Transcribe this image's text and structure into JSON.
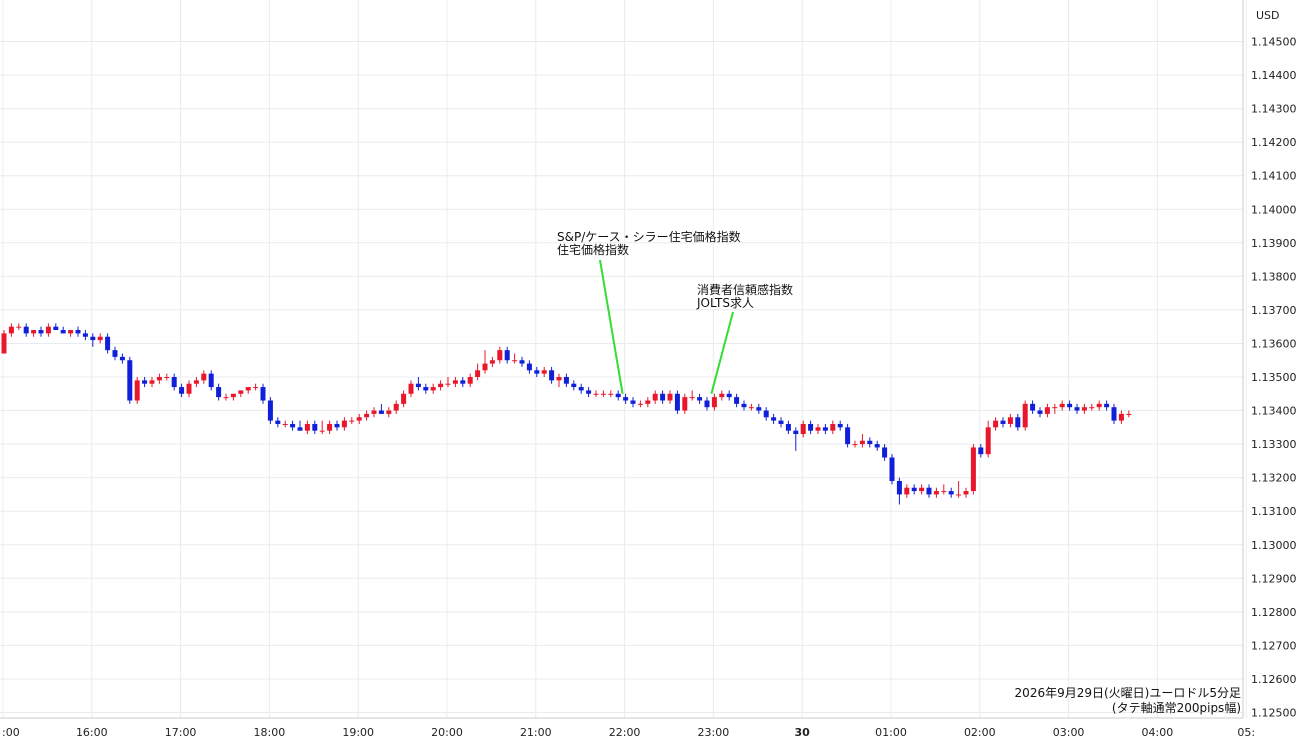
{
  "chart_data": {
    "type": "candlestick",
    "currency": "USD",
    "timeframe_minutes": 5,
    "footnote": [
      "2026年9月29日(火曜日)ユーロドル5分足",
      "(タテ軸通常200pips幅)"
    ],
    "colors": {
      "up": "#e8172b",
      "down": "#1020d8",
      "grid": "#e8ecf0",
      "annotation_line": "#33dd33"
    },
    "grid": true,
    "ylim": [
      1.1245,
      1.1455
    ],
    "y_ticks": [
      "1.14500",
      "1.14400",
      "1.14300",
      "1.14200",
      "1.14100",
      "1.14000",
      "1.13900",
      "1.13800",
      "1.13700",
      "1.13600",
      "1.13500",
      "1.13400",
      "1.13300",
      "1.13200",
      "1.13100",
      "1.13000",
      "1.12900",
      "1.12800",
      "1.12700",
      "1.12600",
      "1.12500"
    ],
    "x_ticks": [
      {
        "label": ":00",
        "hour": 15.0,
        "bold": false
      },
      {
        "label": "16:00",
        "hour": 16.0,
        "bold": false
      },
      {
        "label": "17:00",
        "hour": 17.0,
        "bold": false
      },
      {
        "label": "18:00",
        "hour": 18.0,
        "bold": false
      },
      {
        "label": "19:00",
        "hour": 19.0,
        "bold": false
      },
      {
        "label": "20:00",
        "hour": 20.0,
        "bold": false
      },
      {
        "label": "21:00",
        "hour": 21.0,
        "bold": false
      },
      {
        "label": "22:00",
        "hour": 22.0,
        "bold": false
      },
      {
        "label": "23:00",
        "hour": 23.0,
        "bold": false
      },
      {
        "label": "30",
        "hour": 24.0,
        "bold": true
      },
      {
        "label": "01:00",
        "hour": 25.0,
        "bold": false
      },
      {
        "label": "02:00",
        "hour": 26.0,
        "bold": false
      },
      {
        "label": "03:00",
        "hour": 27.0,
        "bold": false
      },
      {
        "label": "04:00",
        "hour": 28.0,
        "bold": false
      },
      {
        "label": "05:",
        "hour": 29.0,
        "bold": false
      }
    ],
    "annotations": [
      {
        "lines": [
          "S&P/ケース・シラー住宅価格指数",
          "住宅価格指数"
        ],
        "hour": 22.0,
        "price": 1.1345
      },
      {
        "lines": [
          "消費者信頼感指数",
          "JOLTS求人"
        ],
        "hour": 23.0,
        "price": 1.1345
      }
    ],
    "candles": [
      [
        1.1357,
        1.1364,
        1.1357,
        1.1363
      ],
      [
        1.1363,
        1.1366,
        1.1362,
        1.1365
      ],
      [
        1.1365,
        1.1366,
        1.1364,
        1.1365
      ],
      [
        1.1365,
        1.1366,
        1.1362,
        1.1363
      ],
      [
        1.1363,
        1.1364,
        1.1362,
        1.1364
      ],
      [
        1.1364,
        1.1365,
        1.1362,
        1.1363
      ],
      [
        1.1363,
        1.1366,
        1.1362,
        1.1365
      ],
      [
        1.1365,
        1.1366,
        1.1364,
        1.1364
      ],
      [
        1.1364,
        1.1365,
        1.1363,
        1.1363
      ],
      [
        1.1363,
        1.1364,
        1.1362,
        1.1364
      ],
      [
        1.1364,
        1.1365,
        1.1362,
        1.1363
      ],
      [
        1.1363,
        1.1364,
        1.1361,
        1.1362
      ],
      [
        1.1362,
        1.1363,
        1.1359,
        1.1361
      ],
      [
        1.1361,
        1.1363,
        1.136,
        1.1362
      ],
      [
        1.1362,
        1.1363,
        1.1357,
        1.1358
      ],
      [
        1.1358,
        1.1359,
        1.1355,
        1.1356
      ],
      [
        1.1356,
        1.1357,
        1.1354,
        1.1355
      ],
      [
        1.1355,
        1.1356,
        1.1342,
        1.1343
      ],
      [
        1.1343,
        1.135,
        1.1342,
        1.1349
      ],
      [
        1.1349,
        1.135,
        1.1347,
        1.1348
      ],
      [
        1.1348,
        1.135,
        1.1347,
        1.1349
      ],
      [
        1.1349,
        1.1351,
        1.1348,
        1.135
      ],
      [
        1.135,
        1.1351,
        1.1349,
        1.135
      ],
      [
        1.135,
        1.1351,
        1.1346,
        1.1347
      ],
      [
        1.1347,
        1.1348,
        1.1344,
        1.1345
      ],
      [
        1.1345,
        1.1349,
        1.1344,
        1.1348
      ],
      [
        1.1348,
        1.135,
        1.1347,
        1.1349
      ],
      [
        1.1349,
        1.1352,
        1.1348,
        1.1351
      ],
      [
        1.1351,
        1.1352,
        1.1346,
        1.1347
      ],
      [
        1.1347,
        1.1348,
        1.1343,
        1.1344
      ],
      [
        1.1344,
        1.1345,
        1.1343,
        1.1344
      ],
      [
        1.1344,
        1.1345,
        1.1343,
        1.1345
      ],
      [
        1.1345,
        1.1346,
        1.1344,
        1.1346
      ],
      [
        1.1346,
        1.1347,
        1.1345,
        1.1347
      ],
      [
        1.1347,
        1.1348,
        1.1346,
        1.1347
      ],
      [
        1.1347,
        1.1348,
        1.1342,
        1.1343
      ],
      [
        1.1343,
        1.1344,
        1.1336,
        1.1337
      ],
      [
        1.1337,
        1.1338,
        1.1335,
        1.1336
      ],
      [
        1.1336,
        1.1337,
        1.1335,
        1.1336
      ],
      [
        1.1336,
        1.1337,
        1.1334,
        1.1335
      ],
      [
        1.1335,
        1.1337,
        1.1334,
        1.1334
      ],
      [
        1.1334,
        1.1337,
        1.1333,
        1.1336
      ],
      [
        1.1336,
        1.1337,
        1.1333,
        1.1334
      ],
      [
        1.1334,
        1.1337,
        1.1333,
        1.1334
      ],
      [
        1.1334,
        1.1337,
        1.1333,
        1.1336
      ],
      [
        1.1336,
        1.1337,
        1.1334,
        1.1335
      ],
      [
        1.1335,
        1.1338,
        1.1334,
        1.1337
      ],
      [
        1.1337,
        1.1338,
        1.1336,
        1.1337
      ],
      [
        1.1337,
        1.1339,
        1.1336,
        1.1338
      ],
      [
        1.1338,
        1.134,
        1.1337,
        1.1339
      ],
      [
        1.1339,
        1.1341,
        1.1338,
        1.134
      ],
      [
        1.134,
        1.1342,
        1.1339,
        1.1339
      ],
      [
        1.1339,
        1.1341,
        1.1338,
        1.134
      ],
      [
        1.134,
        1.1343,
        1.1339,
        1.1342
      ],
      [
        1.1342,
        1.1346,
        1.1341,
        1.1345
      ],
      [
        1.1345,
        1.1349,
        1.1344,
        1.1348
      ],
      [
        1.1348,
        1.135,
        1.1346,
        1.1347
      ],
      [
        1.1347,
        1.1348,
        1.1345,
        1.1346
      ],
      [
        1.1346,
        1.1348,
        1.1345,
        1.1347
      ],
      [
        1.1347,
        1.1349,
        1.1346,
        1.1348
      ],
      [
        1.1348,
        1.135,
        1.1347,
        1.1348
      ],
      [
        1.1348,
        1.135,
        1.1347,
        1.1349
      ],
      [
        1.1349,
        1.135,
        1.1347,
        1.1348
      ],
      [
        1.1348,
        1.1351,
        1.1347,
        1.135
      ],
      [
        1.135,
        1.1354,
        1.1349,
        1.1352
      ],
      [
        1.1352,
        1.1358,
        1.1351,
        1.1354
      ],
      [
        1.1354,
        1.1356,
        1.1353,
        1.1355
      ],
      [
        1.1355,
        1.1359,
        1.1354,
        1.1358
      ],
      [
        1.1358,
        1.1359,
        1.1354,
        1.1355
      ],
      [
        1.1355,
        1.1357,
        1.1354,
        1.1355
      ],
      [
        1.1355,
        1.1356,
        1.1353,
        1.1354
      ],
      [
        1.1354,
        1.1355,
        1.1351,
        1.1352
      ],
      [
        1.1352,
        1.1353,
        1.135,
        1.1351
      ],
      [
        1.1351,
        1.1353,
        1.135,
        1.1352
      ],
      [
        1.1352,
        1.1353,
        1.1348,
        1.1349
      ],
      [
        1.1349,
        1.1351,
        1.1347,
        1.135
      ],
      [
        1.135,
        1.1351,
        1.1347,
        1.1348
      ],
      [
        1.1348,
        1.1349,
        1.1346,
        1.1347
      ],
      [
        1.1347,
        1.1348,
        1.1345,
        1.1346
      ],
      [
        1.1346,
        1.1347,
        1.1344,
        1.1345
      ],
      [
        1.1345,
        1.1346,
        1.1344,
        1.1345
      ],
      [
        1.1345,
        1.1346,
        1.1344,
        1.1345
      ],
      [
        1.1345,
        1.1346,
        1.1344,
        1.1345
      ],
      [
        1.1345,
        1.1346,
        1.1343,
        1.1344
      ],
      [
        1.1344,
        1.1345,
        1.1342,
        1.1343
      ],
      [
        1.1343,
        1.1344,
        1.1341,
        1.1342
      ],
      [
        1.1342,
        1.1343,
        1.1341,
        1.1342
      ],
      [
        1.1342,
        1.1344,
        1.1341,
        1.1343
      ],
      [
        1.1343,
        1.1346,
        1.1342,
        1.1345
      ],
      [
        1.1345,
        1.1346,
        1.1342,
        1.1343
      ],
      [
        1.1343,
        1.1346,
        1.1342,
        1.1345
      ],
      [
        1.1345,
        1.1346,
        1.1339,
        1.134
      ],
      [
        1.134,
        1.1345,
        1.1339,
        1.1344
      ],
      [
        1.1344,
        1.1346,
        1.1343,
        1.1344
      ],
      [
        1.1344,
        1.1345,
        1.1342,
        1.1343
      ],
      [
        1.1343,
        1.1344,
        1.134,
        1.1341
      ],
      [
        1.1341,
        1.1345,
        1.134,
        1.1344
      ],
      [
        1.1344,
        1.1346,
        1.1343,
        1.1345
      ],
      [
        1.1345,
        1.1346,
        1.1343,
        1.1344
      ],
      [
        1.1344,
        1.1345,
        1.1341,
        1.1342
      ],
      [
        1.1342,
        1.1343,
        1.134,
        1.1341
      ],
      [
        1.1341,
        1.1342,
        1.134,
        1.1341
      ],
      [
        1.1341,
        1.1342,
        1.1339,
        1.134
      ],
      [
        1.134,
        1.1341,
        1.1337,
        1.1338
      ],
      [
        1.1338,
        1.1339,
        1.1336,
        1.1337
      ],
      [
        1.1337,
        1.1338,
        1.1335,
        1.1336
      ],
      [
        1.1336,
        1.1337,
        1.1333,
        1.1334
      ],
      [
        1.1334,
        1.1335,
        1.1328,
        1.1333
      ],
      [
        1.1333,
        1.1337,
        1.1332,
        1.1336
      ],
      [
        1.1336,
        1.1337,
        1.1333,
        1.1334
      ],
      [
        1.1334,
        1.1336,
        1.1333,
        1.1335
      ],
      [
        1.1335,
        1.1336,
        1.1333,
        1.1334
      ],
      [
        1.1334,
        1.1337,
        1.1333,
        1.1336
      ],
      [
        1.1336,
        1.1337,
        1.1334,
        1.1335
      ],
      [
        1.1335,
        1.1336,
        1.1329,
        1.133
      ],
      [
        1.133,
        1.1331,
        1.1329,
        1.133
      ],
      [
        1.133,
        1.1333,
        1.1329,
        1.1331
      ],
      [
        1.1331,
        1.1332,
        1.1329,
        1.133
      ],
      [
        1.133,
        1.1331,
        1.1328,
        1.1329
      ],
      [
        1.1329,
        1.133,
        1.1325,
        1.1326
      ],
      [
        1.1326,
        1.1327,
        1.1318,
        1.1319
      ],
      [
        1.1319,
        1.132,
        1.1312,
        1.1315
      ],
      [
        1.1315,
        1.1318,
        1.1314,
        1.1317
      ],
      [
        1.1317,
        1.1318,
        1.1315,
        1.1316
      ],
      [
        1.1316,
        1.1318,
        1.1315,
        1.1317
      ],
      [
        1.1317,
        1.1318,
        1.1314,
        1.1315
      ],
      [
        1.1315,
        1.1317,
        1.1314,
        1.1316
      ],
      [
        1.1316,
        1.1318,
        1.1315,
        1.1316
      ],
      [
        1.1316,
        1.1317,
        1.1314,
        1.1315
      ],
      [
        1.1315,
        1.1319,
        1.1314,
        1.1315
      ],
      [
        1.1315,
        1.1317,
        1.1314,
        1.1316
      ],
      [
        1.1316,
        1.133,
        1.1315,
        1.1329
      ],
      [
        1.1329,
        1.133,
        1.1326,
        1.1327
      ],
      [
        1.1327,
        1.1337,
        1.1326,
        1.1335
      ],
      [
        1.1335,
        1.1338,
        1.1334,
        1.1337
      ],
      [
        1.1337,
        1.1338,
        1.1335,
        1.1336
      ],
      [
        1.1336,
        1.1339,
        1.1335,
        1.1338
      ],
      [
        1.1338,
        1.1339,
        1.1334,
        1.1335
      ],
      [
        1.1335,
        1.1343,
        1.1334,
        1.1342
      ],
      [
        1.1342,
        1.1343,
        1.1339,
        1.134
      ],
      [
        1.134,
        1.1341,
        1.1338,
        1.1339
      ],
      [
        1.1339,
        1.1342,
        1.1338,
        1.1341
      ],
      [
        1.1341,
        1.1342,
        1.1339,
        1.1341
      ],
      [
        1.1341,
        1.1343,
        1.134,
        1.1342
      ],
      [
        1.1342,
        1.1343,
        1.134,
        1.1341
      ],
      [
        1.1341,
        1.1342,
        1.1339,
        1.134
      ],
      [
        1.134,
        1.1342,
        1.1339,
        1.1341
      ],
      [
        1.1341,
        1.1342,
        1.134,
        1.1341
      ],
      [
        1.1341,
        1.1343,
        1.134,
        1.1342
      ],
      [
        1.1342,
        1.1343,
        1.134,
        1.1341
      ],
      [
        1.1341,
        1.1342,
        1.1336,
        1.1337
      ],
      [
        1.1337,
        1.134,
        1.1336,
        1.1339
      ],
      [
        1.1339,
        1.134,
        1.1338,
        1.1339
      ]
    ]
  }
}
